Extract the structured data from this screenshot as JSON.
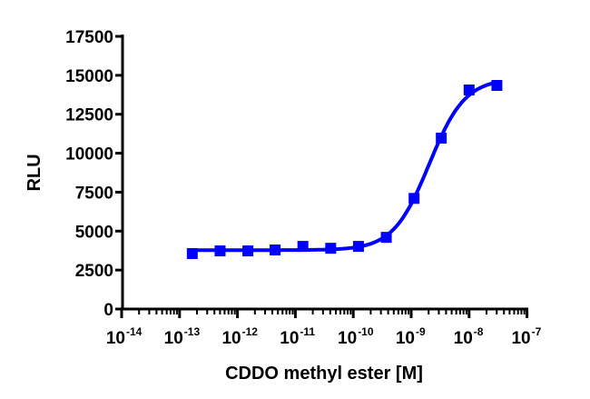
{
  "chart_data": {
    "type": "scatter",
    "title": "",
    "xlabel": "CDDO methyl ester [M]",
    "ylabel": "RLU",
    "xscale": "log10",
    "xlim_log10": [
      -14,
      -7
    ],
    "ylim": [
      0,
      17500
    ],
    "x_tick_exponents": [
      "-14",
      "-13",
      "-12",
      "-11",
      "-10",
      "-9",
      "-8",
      "-7"
    ],
    "x_tick_base": "10",
    "y_ticks": [
      "0",
      "2500",
      "5000",
      "7500",
      "10000",
      "12500",
      "15000",
      "17500"
    ],
    "y_tick_values": [
      0,
      2500,
      5000,
      7500,
      10000,
      12500,
      15000,
      17500
    ],
    "grid": false,
    "color": "#0000ff",
    "series": [
      {
        "name": "CDDO methyl ester",
        "log10_x": [
          -12.78,
          -12.3,
          -11.82,
          -11.35,
          -10.87,
          -10.39,
          -9.91,
          -9.43,
          -8.95,
          -8.48,
          -8.0,
          -7.52
        ],
        "y": [
          3560,
          3730,
          3730,
          3790,
          4020,
          3900,
          4020,
          4600,
          7100,
          10970,
          14060,
          14350
        ]
      }
    ],
    "fit": {
      "model": "4PL",
      "bottom": 3780,
      "top": 14800,
      "log_ec50": -8.69,
      "hill": 1.4
    }
  }
}
